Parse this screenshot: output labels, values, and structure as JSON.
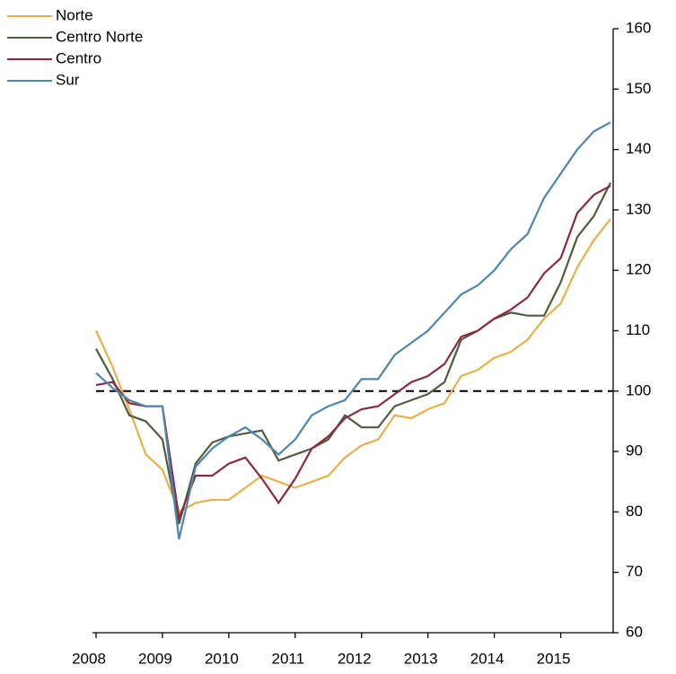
{
  "chart_data": {
    "type": "line",
    "x": [
      2008,
      2008.25,
      2008.5,
      2008.75,
      2009,
      2009.25,
      2009.5,
      2009.75,
      2010,
      2010.25,
      2010.5,
      2010.75,
      2011,
      2011.25,
      2011.5,
      2011.75,
      2012,
      2012.25,
      2012.5,
      2012.75,
      2013,
      2013.25,
      2013.5,
      2013.75,
      2014,
      2014.25,
      2014.5,
      2014.75,
      2015,
      2015.25,
      2015.5,
      2015.75
    ],
    "series": [
      {
        "name": "Norte",
        "color": "#e8b04a",
        "values": [
          110,
          104,
          97,
          89.5,
          87,
          80,
          81.5,
          82,
          82,
          84,
          86,
          85,
          84,
          85,
          86,
          89,
          91,
          92,
          96,
          95.5,
          97,
          98,
          102.5,
          103.5,
          105.5,
          106.5,
          108.5,
          112,
          114.5,
          120.5,
          125,
          128.5
        ]
      },
      {
        "name": "Centro Norte",
        "color": "#4f5d3f",
        "values": [
          107,
          102,
          96,
          95,
          92,
          78,
          88,
          91.5,
          92.5,
          93,
          93.5,
          88.5,
          89.5,
          90.5,
          92,
          96,
          94,
          94,
          97.5,
          98.5,
          99.5,
          101.5,
          108.5,
          110,
          112,
          113,
          112.5,
          112.5,
          118,
          125.5,
          129,
          134.5
        ]
      },
      {
        "name": "Centro",
        "color": "#8b2a3f",
        "values": [
          101,
          101.5,
          98,
          97.5,
          97.5,
          79,
          86,
          86,
          88,
          89,
          85.5,
          81.5,
          85.5,
          90.5,
          92.5,
          95.5,
          97,
          97.5,
          99.5,
          101.5,
          102.5,
          104.5,
          109,
          110,
          112,
          113.5,
          115.5,
          119.5,
          122,
          129.5,
          132.5,
          134
        ]
      },
      {
        "name": "Sur",
        "color": "#4f86ad",
        "values": [
          103,
          100.5,
          98.5,
          97.5,
          97.5,
          75.5,
          87.5,
          90.5,
          92.5,
          94,
          92,
          89.5,
          92,
          96,
          97.5,
          98.5,
          102,
          102,
          106,
          108,
          110,
          113,
          116,
          117.5,
          120,
          123.5,
          126,
          132,
          136,
          140,
          143,
          144.5
        ]
      }
    ],
    "xlim": [
      2008,
      2015.75
    ],
    "xticks": [
      2008,
      2009,
      2010,
      2011,
      2012,
      2013,
      2014,
      2015
    ],
    "ylim": [
      60,
      160
    ],
    "yticks": [
      60,
      70,
      80,
      90,
      100,
      110,
      120,
      130,
      140,
      150,
      160
    ],
    "reference_line": 100,
    "legend": "top-left"
  }
}
